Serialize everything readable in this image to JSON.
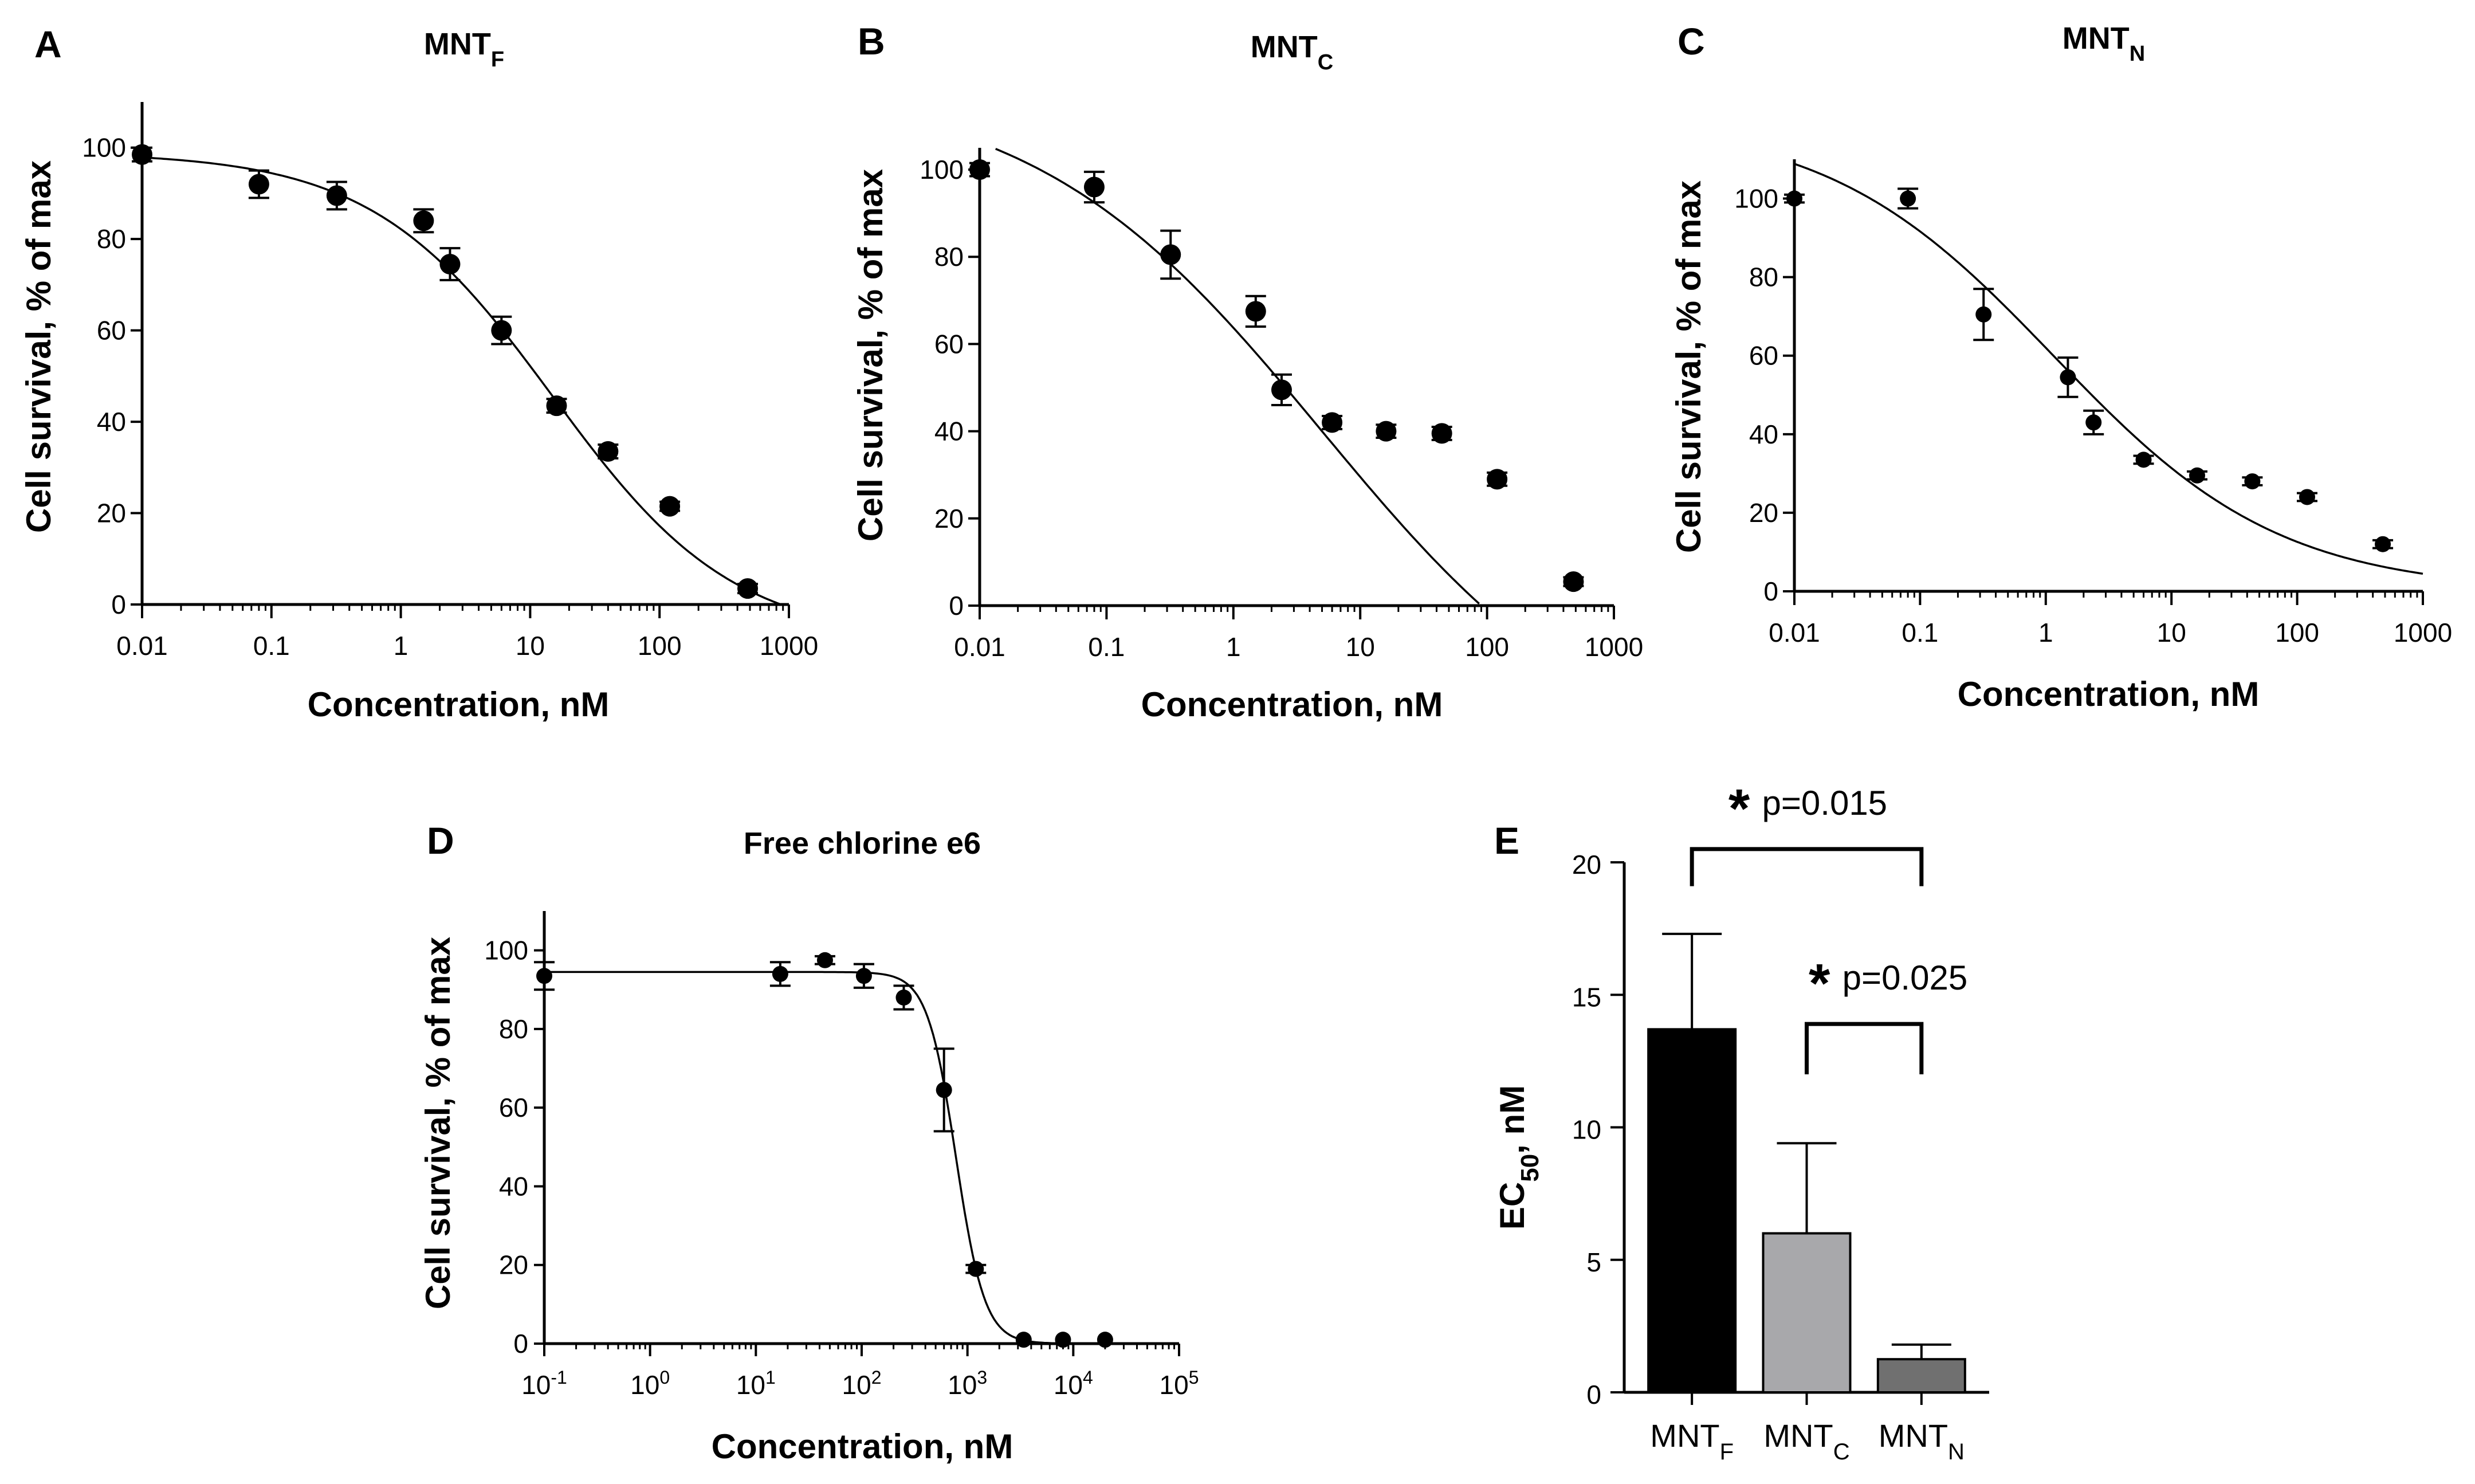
{
  "chart_data": [
    {
      "id": "A",
      "type": "scatter",
      "letter": "A",
      "title": "MNT",
      "title_sub": "F",
      "xlabel": "Concentration, nM",
      "ylabel": "Cell survival, % of max",
      "xscale": "log",
      "xlim": [
        0.01,
        1000
      ],
      "ylim": [
        0,
        110
      ],
      "xticks": [
        0.01,
        0.1,
        1,
        10,
        100,
        1000
      ],
      "xtick_labels": [
        "0.01",
        "0.1",
        "1",
        "10",
        "100",
        "1000"
      ],
      "yticks": [
        0,
        20,
        40,
        60,
        80,
        100
      ],
      "ytick_labels": [
        "0",
        "20",
        "40",
        "60",
        "80",
        "100"
      ],
      "points": [
        {
          "x": 0.01,
          "y": 98.5,
          "err": 1.5
        },
        {
          "x": 0.08,
          "y": 92,
          "err": 3
        },
        {
          "x": 0.32,
          "y": 89.5,
          "err": 3
        },
        {
          "x": 1.5,
          "y": 84,
          "err": 2.5
        },
        {
          "x": 2.4,
          "y": 74.5,
          "err": 3.5
        },
        {
          "x": 6,
          "y": 60,
          "err": 3
        },
        {
          "x": 16,
          "y": 43.5,
          "err": 1.5
        },
        {
          "x": 40,
          "y": 33.5,
          "err": 1.5
        },
        {
          "x": 120,
          "y": 21.5,
          "err": 1
        },
        {
          "x": 480,
          "y": 3.5,
          "err": 1
        }
      ],
      "fit": {
        "top": 99,
        "bottom": -8,
        "ec50": 15,
        "hill": 0.62
      }
    },
    {
      "id": "B",
      "type": "scatter",
      "letter": "B",
      "title": "MNT",
      "title_sub": "C",
      "xlabel": "Concentration, nM",
      "ylabel": "Cell survival, % of max",
      "xscale": "log",
      "xlim": [
        0.01,
        1000
      ],
      "ylim": [
        0,
        105
      ],
      "xticks": [
        0.01,
        0.1,
        1,
        10,
        100,
        1000
      ],
      "xtick_labels": [
        "0.01",
        "0.1",
        "1",
        "10",
        "100",
        "1000"
      ],
      "yticks": [
        0,
        20,
        40,
        60,
        80,
        100
      ],
      "ytick_labels": [
        "0",
        "20",
        "40",
        "60",
        "80",
        "100"
      ],
      "points": [
        {
          "x": 0.01,
          "y": 100,
          "err": 1.5
        },
        {
          "x": 0.08,
          "y": 96,
          "err": 3.5
        },
        {
          "x": 0.32,
          "y": 80.5,
          "err": 5.5
        },
        {
          "x": 1.5,
          "y": 67.5,
          "err": 3.5
        },
        {
          "x": 2.4,
          "y": 49.5,
          "err": 3.5
        },
        {
          "x": 6,
          "y": 42,
          "err": 1.5
        },
        {
          "x": 16,
          "y": 40,
          "err": 1.5
        },
        {
          "x": 44,
          "y": 39.5,
          "err": 1.5
        },
        {
          "x": 120,
          "y": 29,
          "err": 1.5
        },
        {
          "x": 480,
          "y": 5.5,
          "err": 1
        }
      ],
      "fit": {
        "top": 120,
        "bottom": -40,
        "ec50": 5,
        "hill": 0.38
      }
    },
    {
      "id": "C",
      "type": "scatter",
      "letter": "C",
      "title": "MNT",
      "title_sub": "N",
      "xlabel": "Concentration, nM",
      "ylabel": "Cell survival, % of max",
      "xscale": "log",
      "xlim": [
        0.01,
        1000
      ],
      "ylim": [
        0,
        110
      ],
      "xticks": [
        0.01,
        0.1,
        1,
        10,
        100,
        1000
      ],
      "xtick_labels": [
        "0.01",
        "0.1",
        "1",
        "10",
        "100",
        "1000"
      ],
      "yticks": [
        0,
        20,
        40,
        60,
        80,
        100
      ],
      "ytick_labels": [
        "0",
        "20",
        "40",
        "60",
        "80",
        "100"
      ],
      "points": [
        {
          "x": 0.01,
          "y": 100,
          "err": 1
        },
        {
          "x": 0.08,
          "y": 100,
          "err": 2.5
        },
        {
          "x": 0.32,
          "y": 70.5,
          "err": 6.5
        },
        {
          "x": 1.5,
          "y": 54.5,
          "err": 5
        },
        {
          "x": 2.4,
          "y": 43,
          "err": 3
        },
        {
          "x": 6,
          "y": 33.5,
          "err": 1
        },
        {
          "x": 16,
          "y": 29.5,
          "err": 1
        },
        {
          "x": 44,
          "y": 28,
          "err": 1
        },
        {
          "x": 120,
          "y": 24,
          "err": 1
        },
        {
          "x": 480,
          "y": 12,
          "err": 1
        }
      ],
      "fit": {
        "top": 120,
        "bottom": 0,
        "ec50": 1.15,
        "hill": 0.48
      }
    },
    {
      "id": "D",
      "type": "scatter",
      "letter": "D",
      "title": "Free chlorine e6",
      "title_sub": "",
      "xlabel": "Concentration, nM",
      "ylabel": "Cell survival, % of max",
      "xscale": "log",
      "xlim": [
        0.1,
        100000
      ],
      "ylim": [
        0,
        110
      ],
      "xticks": [
        0.1,
        1,
        10,
        100,
        1000,
        10000,
        100000
      ],
      "xtick_base": "10",
      "xtick_exponents": [
        "-1",
        "0",
        "1",
        "2",
        "3",
        "4",
        "5"
      ],
      "yticks": [
        0,
        20,
        40,
        60,
        80,
        100
      ],
      "ytick_labels": [
        "0",
        "20",
        "40",
        "60",
        "80",
        "100"
      ],
      "points": [
        {
          "x": 0.1,
          "y": 93.5,
          "err": 3.5
        },
        {
          "x": 17,
          "y": 94,
          "err": 3
        },
        {
          "x": 45,
          "y": 97.5,
          "err": 1
        },
        {
          "x": 105,
          "y": 93.5,
          "err": 3
        },
        {
          "x": 250,
          "y": 88,
          "err": 3
        },
        {
          "x": 600,
          "y": 64.5,
          "err": 10.5
        },
        {
          "x": 1200,
          "y": 19,
          "err": 1
        },
        {
          "x": 3400,
          "y": 1,
          "err": 0.5
        },
        {
          "x": 8000,
          "y": 1,
          "err": 0.5
        },
        {
          "x": 20000,
          "y": 1,
          "err": 0.5
        }
      ],
      "fit": {
        "top": 94.5,
        "bottom": 0,
        "ec50": 780,
        "hill": 3.2
      }
    },
    {
      "id": "E",
      "type": "bar",
      "letter": "E",
      "ylabel": "EC",
      "ylabel_sub": "50",
      "ylabel_suffix": ", nM",
      "ylim": [
        0,
        20
      ],
      "yticks": [
        0,
        5,
        10,
        15,
        20
      ],
      "ytick_labels": [
        "0",
        "5",
        "10",
        "15",
        "20"
      ],
      "categories": [
        {
          "base": "MNT",
          "sub": "F"
        },
        {
          "base": "MNT",
          "sub": "C"
        },
        {
          "base": "MNT",
          "sub": "N"
        }
      ],
      "values": [
        13.7,
        6.0,
        1.25
      ],
      "errors": [
        3.6,
        3.4,
        0.55
      ],
      "colors": [
        "#000000",
        "#a8a8ab",
        "#707070"
      ],
      "significance": [
        {
          "from": 0,
          "to": 2,
          "y": 20.5,
          "drop": 1.4,
          "label": "p=0.015"
        },
        {
          "from": 1,
          "to": 2,
          "y": 13.9,
          "drop": 1.9,
          "label": "p=0.025"
        }
      ],
      "star": "*"
    }
  ]
}
